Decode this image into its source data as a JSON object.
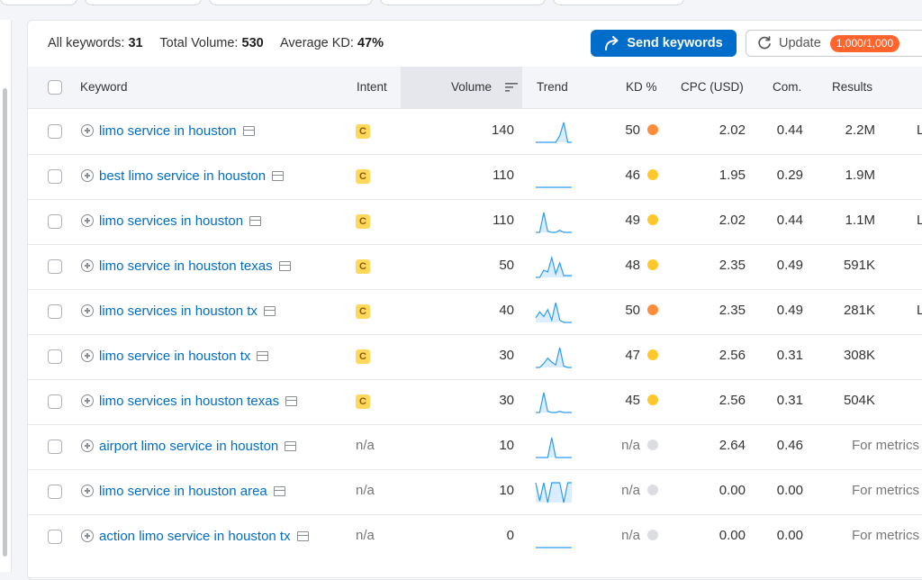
{
  "summary": {
    "keywords_label": "All keywords:",
    "keywords_value": "31",
    "volume_label": "Total Volume:",
    "volume_value": "530",
    "kd_label": "Average KD:",
    "kd_value": "47%"
  },
  "buttons": {
    "send": "Send keywords",
    "update": "Update",
    "quota": "1,000/1,000"
  },
  "columns": {
    "keyword": "Keyword",
    "intent": "Intent",
    "volume": "Volume",
    "trend": "Trend",
    "kd": "KD %",
    "cpc": "CPC (USD)",
    "com": "Com.",
    "results": "Results"
  },
  "colors": {
    "accent": "#006dca",
    "kd_orange": "#ff8c3a",
    "kd_yellow": "#ffc72b",
    "kd_na": "#dcdde2",
    "intent_badge": "#ffd85c",
    "quota_badge": "#ff642d"
  },
  "rows": [
    {
      "keyword": "limo service in houston",
      "intent": "C",
      "volume": "140",
      "trend": [
        1,
        1,
        1,
        1,
        1,
        1,
        2,
        4,
        1,
        1
      ],
      "kd": "50",
      "kd_color": "orange",
      "cpc": "2.02",
      "com": "0.44",
      "results": "2.2M",
      "extra": "L"
    },
    {
      "keyword": "best limo service in houston",
      "intent": "C",
      "volume": "110",
      "trend": [
        1,
        1,
        1,
        1,
        1,
        1,
        1,
        1,
        1,
        1
      ],
      "kd": "46",
      "kd_color": "yellow",
      "cpc": "1.95",
      "com": "0.29",
      "results": "1.9M",
      "extra": ""
    },
    {
      "keyword": "limo services in houston",
      "intent": "C",
      "volume": "110",
      "trend": [
        1,
        1,
        20,
        2,
        1,
        1,
        3,
        1,
        1,
        1
      ],
      "kd": "49",
      "kd_color": "yellow",
      "cpc": "2.02",
      "com": "0.44",
      "results": "1.1M",
      "extra": "L"
    },
    {
      "keyword": "limo service in houston texas",
      "intent": "C",
      "volume": "50",
      "trend": [
        1,
        1,
        5,
        4,
        12,
        3,
        9,
        2,
        2,
        2
      ],
      "kd": "48",
      "kd_color": "yellow",
      "cpc": "2.35",
      "com": "0.49",
      "results": "591K",
      "extra": ""
    },
    {
      "keyword": "limo services in houston tx",
      "intent": "C",
      "volume": "40",
      "trend": [
        5,
        10,
        6,
        12,
        3,
        18,
        3,
        1,
        1,
        1
      ],
      "kd": "50",
      "kd_color": "orange",
      "cpc": "2.35",
      "com": "0.49",
      "results": "281K",
      "extra": "L"
    },
    {
      "keyword": "limo service in houston tx",
      "intent": "C",
      "volume": "30",
      "trend": [
        1,
        1,
        4,
        8,
        5,
        3,
        16,
        2,
        1,
        1
      ],
      "kd": "47",
      "kd_color": "yellow",
      "cpc": "2.56",
      "com": "0.31",
      "results": "308K",
      "extra": ""
    },
    {
      "keyword": "limo services in houston texas",
      "intent": "C",
      "volume": "30",
      "trend": [
        1,
        1,
        20,
        2,
        1,
        1,
        2,
        1,
        1,
        1
      ],
      "kd": "45",
      "kd_color": "yellow",
      "cpc": "2.56",
      "com": "0.31",
      "results": "504K",
      "extra": ""
    },
    {
      "keyword": "airport limo service in houston",
      "intent": "n/a",
      "volume": "10",
      "trend": [
        1,
        1,
        1,
        1,
        20,
        1,
        1,
        1,
        1,
        1
      ],
      "kd": "n/a",
      "kd_color": "na",
      "cpc": "2.64",
      "com": "0.46",
      "results": "For metrics",
      "extra": ""
    },
    {
      "keyword": "limo service in houston area",
      "intent": "n/a",
      "volume": "10",
      "trend": [
        14,
        2,
        14,
        1,
        14,
        14,
        14,
        1,
        14,
        14
      ],
      "kd": "n/a",
      "kd_color": "na",
      "cpc": "0.00",
      "com": "0.00",
      "results": "For metrics",
      "extra": ""
    },
    {
      "keyword": "action limo service in houston tx",
      "intent": "n/a",
      "volume": "0",
      "trend": [
        1,
        1,
        1,
        1,
        1,
        1,
        1,
        1,
        1,
        1
      ],
      "kd": "n/a",
      "kd_color": "na",
      "cpc": "0.00",
      "com": "0.00",
      "results": "For metrics",
      "extra": ""
    }
  ]
}
